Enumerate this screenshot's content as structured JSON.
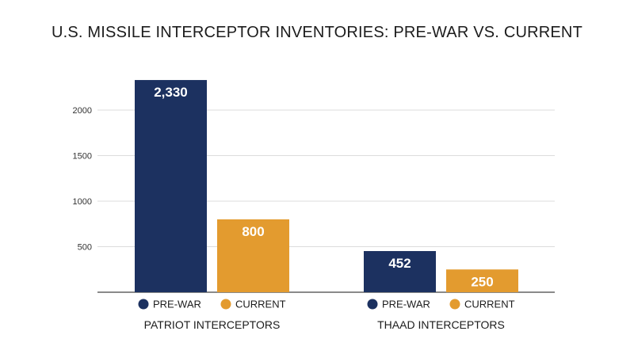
{
  "chart_data": {
    "type": "bar",
    "title": "U.S. MISSILE INTERCEPTOR INVENTORIES: PRE-WAR VS. CURRENT",
    "categories": [
      "PATRIOT INTERCEPTORS",
      "THAAD INTERCEPTORS"
    ],
    "series": [
      {
        "name": "PRE-WAR",
        "values": [
          2330,
          452
        ],
        "labels": [
          "2,330",
          "452"
        ],
        "color": "#1c3160"
      },
      {
        "name": "CURRENT",
        "values": [
          800,
          250
        ],
        "labels": [
          "800",
          "250"
        ],
        "color": "#e39b2f"
      }
    ],
    "yticks": [
      500,
      1000,
      1500,
      2000
    ],
    "ylim": [
      0,
      2330
    ],
    "grid": true,
    "legend": "under each group",
    "xlabel": "",
    "ylabel": ""
  }
}
